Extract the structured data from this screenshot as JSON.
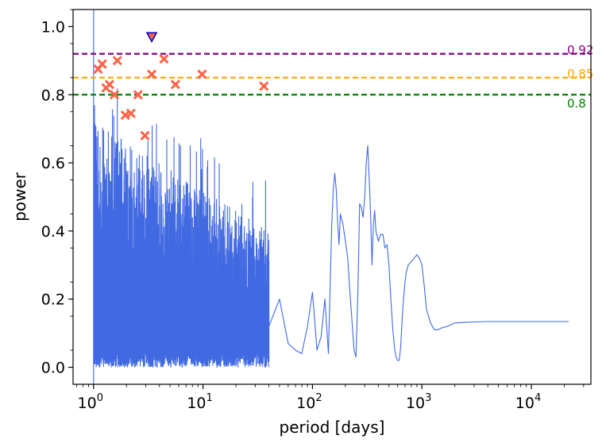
{
  "chart_data": {
    "type": "line",
    "title": "",
    "xlabel": "period [days]",
    "ylabel": "power",
    "xscale": "log",
    "xlim": [
      0.65,
      35000
    ],
    "ylim": [
      -0.05,
      1.05
    ],
    "x_ticks": [
      {
        "value": 1,
        "base": "10",
        "exp": "0"
      },
      {
        "value": 10,
        "base": "10",
        "exp": "1"
      },
      {
        "value": 100,
        "base": "10",
        "exp": "2"
      },
      {
        "value": 1000,
        "base": "10",
        "exp": "3"
      },
      {
        "value": 10000,
        "base": "10",
        "exp": "4"
      }
    ],
    "y_ticks": [
      {
        "value": 0.0,
        "label": "0.0"
      },
      {
        "value": 0.2,
        "label": "0.2"
      },
      {
        "value": 0.4,
        "label": "0.4"
      },
      {
        "value": 0.6,
        "label": "0.6"
      },
      {
        "value": 0.8,
        "label": "0.8"
      },
      {
        "value": 1.0,
        "label": "1.0"
      }
    ],
    "thresholds": [
      {
        "value": 0.92,
        "label": "0.92",
        "color": "#800080"
      },
      {
        "value": 0.85,
        "label": "0.85",
        "color": "#ffa500"
      },
      {
        "value": 0.8,
        "label": "0.8",
        "color": "#008000"
      }
    ],
    "series_color": "#4169e1",
    "periodogram_smooth": {
      "x": [
        40,
        50,
        60,
        70,
        80,
        90,
        100,
        110,
        120,
        130,
        140,
        150,
        155,
        160,
        165,
        170,
        175,
        180,
        190,
        200,
        210,
        220,
        240,
        250,
        260,
        270,
        280,
        290,
        300,
        310,
        320,
        330,
        340,
        350,
        360,
        370,
        380,
        400,
        420,
        440,
        460,
        480,
        500,
        520,
        540,
        560,
        580,
        600,
        620,
        640,
        660,
        680,
        700,
        720,
        750,
        800,
        850,
        900,
        950,
        1000,
        1050,
        1100,
        1200,
        1300,
        1400,
        1500,
        1700,
        2000,
        2500,
        3000,
        4000,
        5000,
        7000,
        10000,
        15000,
        22000
      ],
      "y": [
        0.12,
        0.2,
        0.07,
        0.05,
        0.04,
        0.12,
        0.22,
        0.05,
        0.09,
        0.2,
        0.04,
        0.42,
        0.52,
        0.57,
        0.52,
        0.42,
        0.36,
        0.45,
        0.42,
        0.37,
        0.32,
        0.22,
        0.05,
        0.03,
        0.22,
        0.48,
        0.47,
        0.44,
        0.5,
        0.6,
        0.65,
        0.55,
        0.45,
        0.3,
        0.42,
        0.46,
        0.4,
        0.37,
        0.39,
        0.39,
        0.35,
        0.36,
        0.3,
        0.2,
        0.12,
        0.06,
        0.03,
        0.02,
        0.02,
        0.06,
        0.14,
        0.2,
        0.25,
        0.28,
        0.3,
        0.31,
        0.32,
        0.33,
        0.32,
        0.3,
        0.24,
        0.17,
        0.13,
        0.11,
        0.11,
        0.115,
        0.12,
        0.13,
        0.132,
        0.133,
        0.134,
        0.134,
        0.134,
        0.134,
        0.134,
        0.134
      ]
    },
    "peaks": {
      "x": [
        1.1,
        1.2,
        1.3,
        1.4,
        1.55,
        1.65,
        1.95,
        2.2,
        2.55,
        2.95,
        3.4,
        4.4,
        5.6,
        9.8,
        36
      ],
      "y": [
        0.875,
        0.89,
        0.82,
        0.83,
        0.8,
        0.9,
        0.74,
        0.745,
        0.8,
        0.68,
        0.86,
        0.905,
        0.83,
        0.86,
        0.825
      ],
      "marker": "x",
      "color": "#ff6347"
    },
    "best_peak": {
      "x": 3.4,
      "y": 0.97,
      "marker": "triangle-down",
      "color": "#0000cd"
    }
  }
}
